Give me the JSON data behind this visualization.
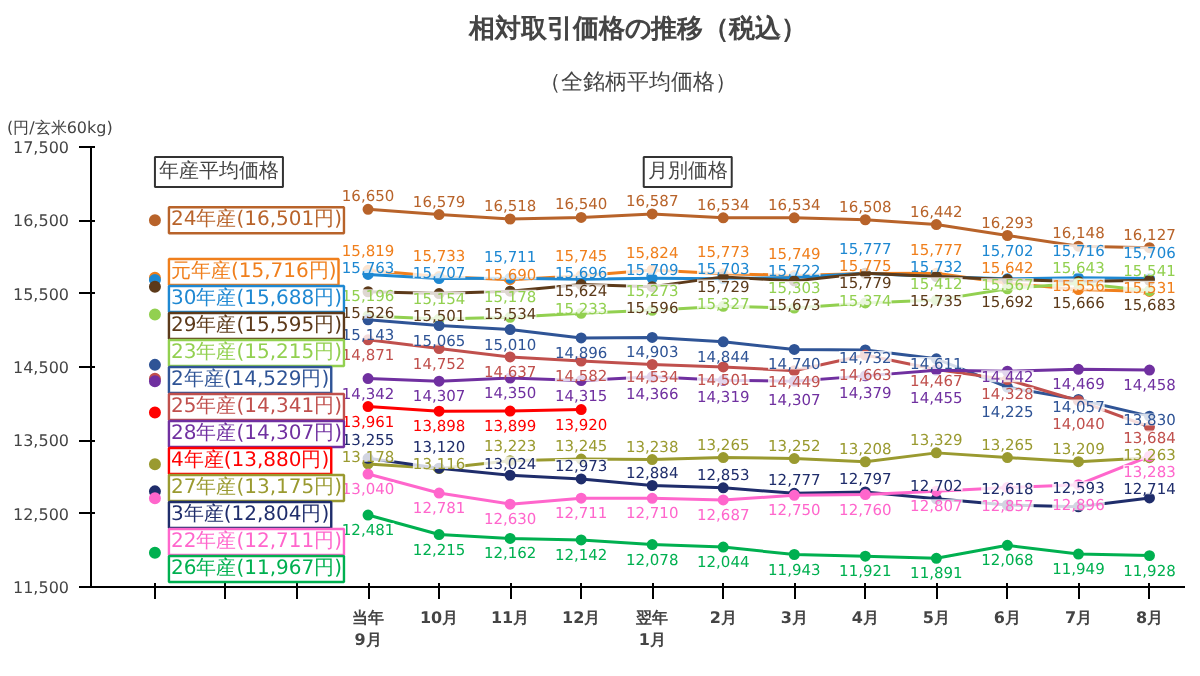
{
  "chart_data": {
    "type": "line",
    "title": "相対取引価格の推移（税込）",
    "subtitle": "（全銘柄平均価格）",
    "ylabel": "(円/玄米60kg)",
    "categories": [
      null,
      null,
      null,
      "当年\n9月",
      "10月",
      "11月",
      "12月",
      "翌年\n1月",
      "2月",
      "3月",
      "4月",
      "5月",
      "6月",
      "7月",
      "8月"
    ],
    "ylim": [
      11500,
      17500
    ],
    "yticks": [
      {
        "value": 11500,
        "label": "11,500"
      },
      {
        "value": 12500,
        "label": "12,500"
      },
      {
        "value": 13500,
        "label": "13,500"
      },
      {
        "value": 14500,
        "label": "14,500"
      },
      {
        "value": 15500,
        "label": "15,500"
      },
      {
        "value": 16500,
        "label": "16,500"
      },
      {
        "value": 17500,
        "label": "17,500"
      }
    ],
    "grid": false,
    "legend": "left",
    "marker": "circle",
    "line_style": "solid",
    "annotations": [
      "年産平均価格",
      "月別価格"
    ],
    "series": [
      {
        "color": "#b8632a",
        "values": [
          null,
          null,
          null,
          16650,
          16579,
          16518,
          16540,
          16587,
          16534,
          16534,
          16508,
          16442,
          16293,
          16148,
          16127
        ],
        "value_labels": [
          null,
          null,
          null,
          "16,650",
          "16,579",
          "16,518",
          "16,540",
          "16,587",
          "16,534",
          "16,534",
          "16,508",
          "16,442",
          "16,293",
          "16,148",
          "16,127"
        ]
      },
      {
        "color": "#f07f1c",
        "values": [
          null,
          null,
          null,
          15819,
          15733,
          15690,
          15745,
          15824,
          15773,
          15749,
          15775,
          15777,
          15642,
          15556,
          15531
        ],
        "value_labels": [
          null,
          null,
          null,
          "15,819",
          "15,733",
          "15,690",
          "15,745",
          "15,824",
          "15,773",
          "15,749",
          "15,775",
          "15,777",
          "15,642",
          "15,556",
          "15,531"
        ]
      },
      {
        "color": "#1e88d2",
        "values": [
          null,
          null,
          null,
          15763,
          15707,
          15711,
          15696,
          15709,
          15703,
          15722,
          15777,
          15732,
          15702,
          15716,
          15706
        ],
        "value_labels": [
          null,
          null,
          null,
          "15,763",
          "15,707",
          "15,711",
          "15,696",
          "15,709",
          "15,703",
          "15,722",
          "15,777",
          "15,732",
          "15,702",
          "15,716",
          "15,706"
        ]
      },
      {
        "color": "#5c3a1a",
        "values": [
          null,
          null,
          null,
          15526,
          15501,
          15534,
          15624,
          15596,
          15729,
          15673,
          15779,
          15735,
          15692,
          15666,
          15683
        ],
        "value_labels": [
          null,
          null,
          null,
          "15,526",
          "15,501",
          "15,534",
          "15,624",
          "15,596",
          "15,729",
          "15,673",
          "15,779",
          "15,735",
          "15,692",
          "15,666",
          "15,683"
        ]
      },
      {
        "color": "#92d050",
        "values": [
          null,
          null,
          null,
          15196,
          15154,
          15178,
          15233,
          15273,
          15327,
          15303,
          15374,
          15412,
          15567,
          15643,
          15541
        ],
        "value_labels": [
          null,
          null,
          null,
          "15,196",
          "15,154",
          "15,178",
          "15,233",
          "15,273",
          "15,327",
          "15,303",
          "15,374",
          "15,412",
          "15,567",
          "15,643",
          "15,541"
        ]
      },
      {
        "color": "#2f5496",
        "values": [
          null,
          null,
          null,
          15143,
          15065,
          15010,
          14896,
          14903,
          14844,
          14740,
          14732,
          14611,
          14225,
          14057,
          13830
        ],
        "value_labels": [
          null,
          null,
          null,
          "15,143",
          "15,065",
          "15,010",
          "14,896",
          "14,903",
          "14,844",
          "14,740",
          "14,732",
          "14,611",
          "14,225",
          "14,057",
          "13,830"
        ]
      },
      {
        "color": "#c0504d",
        "values": [
          null,
          null,
          null,
          14871,
          14752,
          14637,
          14582,
          14534,
          14501,
          14449,
          14663,
          14467,
          14328,
          14040,
          13684
        ],
        "value_labels": [
          null,
          null,
          null,
          "14,871",
          "14,752",
          "14,637",
          "14,582",
          "14,534",
          "14,501",
          "14,449",
          "14,663",
          "14,467",
          "14,328",
          "14,040",
          "13,684"
        ]
      },
      {
        "color": "#7030a0",
        "values": [
          null,
          null,
          null,
          14342,
          14307,
          14350,
          14315,
          14366,
          14319,
          14307,
          14379,
          14455,
          14442,
          14469,
          14458
        ],
        "value_labels": [
          null,
          null,
          null,
          "14,342",
          "14,307",
          "14,350",
          "14,315",
          "14,366",
          "14,319",
          "14,307",
          "14,379",
          "14,455",
          "14,442",
          "14,469",
          "14,458"
        ]
      },
      {
        "color": "#ff0000",
        "values": [
          null,
          null,
          null,
          13961,
          13898,
          13899,
          13920,
          null,
          null,
          null,
          null,
          null,
          null,
          null,
          null
        ],
        "value_labels": [
          null,
          null,
          null,
          "13,961",
          "13,898",
          "13,899",
          "13,920",
          null,
          null,
          null,
          null,
          null,
          null,
          null,
          null
        ]
      },
      {
        "color": "#9a9a30",
        "values": [
          null,
          null,
          null,
          13178,
          13116,
          13223,
          13245,
          13238,
          13265,
          13252,
          13208,
          13329,
          13265,
          13209,
          13263
        ],
        "value_labels": [
          null,
          null,
          null,
          "13,178",
          "13,116",
          "13,223",
          "13,245",
          "13,238",
          "13,265",
          "13,252",
          "13,208",
          "13,329",
          "13,265",
          "13,209",
          "13,263"
        ]
      },
      {
        "color": "#1f2d6b",
        "values": [
          null,
          null,
          null,
          13255,
          13120,
          13024,
          12973,
          12884,
          12853,
          12777,
          12797,
          12702,
          12618,
          12593,
          12714
        ],
        "value_labels": [
          null,
          null,
          null,
          "13,255",
          "13,120",
          "13,024",
          "12,973",
          "12,884",
          "12,853",
          "12,777",
          "12,797",
          "12,702",
          "12,618",
          "12,593",
          "12,714"
        ]
      },
      {
        "color": "#ff66cc",
        "values": [
          null,
          null,
          null,
          13040,
          12781,
          12630,
          12711,
          12710,
          12687,
          12750,
          12760,
          12807,
          12857,
          12896,
          13283
        ],
        "value_labels": [
          null,
          null,
          null,
          "13,040",
          "12,781",
          "12,630",
          "12,711",
          "12,710",
          "12,687",
          "12,750",
          "12,760",
          "12,807",
          "12,857",
          "12,896",
          "13,283"
        ]
      },
      {
        "color": "#00b050",
        "values": [
          null,
          null,
          null,
          12481,
          12215,
          12162,
          12142,
          12078,
          12044,
          11943,
          11921,
          11891,
          12068,
          11949,
          11928
        ],
        "value_labels": [
          null,
          null,
          null,
          "12,481",
          "12,215",
          "12,162",
          "12,142",
          "12,078",
          "12,044",
          "11,943",
          "11,921",
          "11,891",
          "12,068",
          "11,949",
          "11,928"
        ]
      },
      {
        "type": "scatter",
        "name": "24年産(16,501円)",
        "color": "#b8632a",
        "values": [
          16501,
          null,
          null,
          null,
          null,
          null,
          null,
          null,
          null,
          null,
          null,
          null,
          null,
          null,
          null
        ]
      },
      {
        "type": "scatter",
        "name": "元年産(15,716円)",
        "color": "#f07f1c",
        "values": [
          15716,
          null,
          null,
          null,
          null,
          null,
          null,
          null,
          null,
          null,
          null,
          null,
          null,
          null,
          null
        ]
      },
      {
        "type": "scatter",
        "name": "30年産(15,688円)",
        "color": "#1e88d2",
        "values": [
          15688,
          null,
          null,
          null,
          null,
          null,
          null,
          null,
          null,
          null,
          null,
          null,
          null,
          null,
          null
        ]
      },
      {
        "type": "scatter",
        "name": "29年産(15,595円)",
        "color": "#5c3a1a",
        "values": [
          15595,
          null,
          null,
          null,
          null,
          null,
          null,
          null,
          null,
          null,
          null,
          null,
          null,
          null,
          null
        ]
      },
      {
        "type": "scatter",
        "name": "23年産(15,215円)",
        "color": "#92d050",
        "values": [
          15215,
          null,
          null,
          null,
          null,
          null,
          null,
          null,
          null,
          null,
          null,
          null,
          null,
          null,
          null
        ]
      },
      {
        "type": "scatter",
        "name": "2年産(14,529円)",
        "color": "#2f5496",
        "values": [
          14529,
          null,
          null,
          null,
          null,
          null,
          null,
          null,
          null,
          null,
          null,
          null,
          null,
          null,
          null
        ]
      },
      {
        "type": "scatter",
        "name": "25年産(14,341円)",
        "color": "#c0504d",
        "values": [
          14341,
          null,
          null,
          null,
          null,
          null,
          null,
          null,
          null,
          null,
          null,
          null,
          null,
          null,
          null
        ]
      },
      {
        "type": "scatter",
        "name": "28年産(14,307円)",
        "color": "#7030a0",
        "values": [
          14307,
          null,
          null,
          null,
          null,
          null,
          null,
          null,
          null,
          null,
          null,
          null,
          null,
          null,
          null
        ]
      },
      {
        "type": "scatter",
        "name": "4年産(13,880円)",
        "color": "#ff0000",
        "values": [
          13880,
          null,
          null,
          null,
          null,
          null,
          null,
          null,
          null,
          null,
          null,
          null,
          null,
          null,
          null
        ]
      },
      {
        "type": "scatter",
        "name": "27年産(13,175円)",
        "color": "#9a9a30",
        "values": [
          13175,
          null,
          null,
          null,
          null,
          null,
          null,
          null,
          null,
          null,
          null,
          null,
          null,
          null,
          null
        ]
      },
      {
        "type": "scatter",
        "name": "3年産(12,804円)",
        "color": "#1f2d6b",
        "values": [
          12804,
          null,
          null,
          null,
          null,
          null,
          null,
          null,
          null,
          null,
          null,
          null,
          null,
          null,
          null
        ]
      },
      {
        "type": "scatter",
        "name": "22年産(12,711円)",
        "color": "#ff66cc",
        "values": [
          12711,
          null,
          null,
          null,
          null,
          null,
          null,
          null,
          null,
          null,
          null,
          null,
          null,
          null,
          null
        ]
      },
      {
        "type": "scatter",
        "name": "26年産(11,967円)",
        "color": "#00b050",
        "values": [
          11967,
          null,
          null,
          null,
          null,
          null,
          null,
          null,
          null,
          null,
          null,
          null,
          null,
          null,
          null
        ]
      }
    ]
  }
}
